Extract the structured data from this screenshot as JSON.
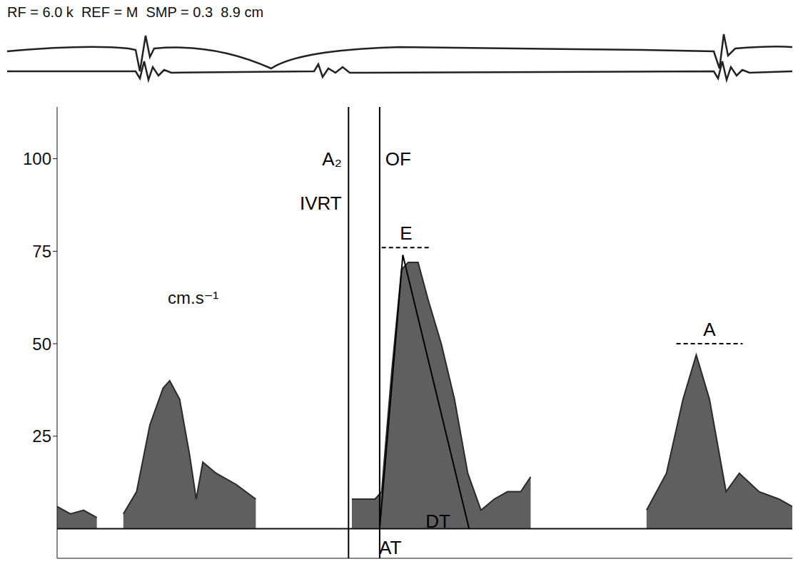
{
  "chart_data": {
    "type": "area",
    "header": "RF = 6.0 k  REF = M  SMP = 0.3  8.9 cm",
    "y_label": "cm.s⁻¹",
    "x": [
      0,
      20,
      40,
      60,
      80,
      100,
      120,
      140,
      160,
      170,
      185,
      200,
      210,
      220,
      240,
      270,
      300,
      320,
      330,
      350,
      380,
      420,
      445,
      480,
      490,
      505,
      520,
      530,
      545,
      560,
      580,
      600,
      620,
      640,
      660,
      680,
      700,
      715,
      725,
      740,
      800,
      850,
      890,
      920,
      945,
      965,
      985,
      1000,
      1010,
      1030,
      1060,
      1090,
      1110
    ],
    "values": [
      6,
      4,
      5,
      3,
      null,
      4,
      10,
      28,
      38,
      40,
      35,
      20,
      8,
      18,
      15,
      12,
      8,
      null,
      null,
      null,
      null,
      null,
      8,
      8,
      10,
      42,
      70,
      72,
      72,
      62,
      50,
      35,
      15,
      5,
      8,
      10,
      10,
      14,
      null,
      null,
      null,
      null,
      5,
      15,
      35,
      47,
      35,
      20,
      10,
      15,
      10,
      8,
      6
    ],
    "color": "#2a2a2a",
    "xlim": [
      0,
      1110
    ],
    "ylim": [
      -8,
      114
    ],
    "yticks": [
      25,
      50,
      75,
      100
    ],
    "tick_labels": "y",
    "events": [
      440,
      487
    ],
    "peaks": [
      {
        "x": [
          490,
          565
        ],
        "value": 76
      },
      {
        "x": [
          935,
          1035
        ],
        "value": 50
      }
    ],
    "fit": {
      "x": [
        487,
        522,
        622
      ],
      "values": [
        0,
        74,
        0
      ]
    },
    "annotations": [
      {
        "text": "A₂",
        "x": 415,
        "y": 100
      },
      {
        "text": "OF",
        "x": 515,
        "y": 100
      },
      {
        "text": "IVRT",
        "x": 398,
        "y": 88
      },
      {
        "text": "E",
        "x": 527,
        "y": 80
      },
      {
        "text": "A",
        "x": 985,
        "y": 54
      },
      {
        "text": "DT",
        "x": 575,
        "y": 2
      },
      {
        "text": "AT",
        "x": 503,
        "y": -5
      }
    ]
  }
}
